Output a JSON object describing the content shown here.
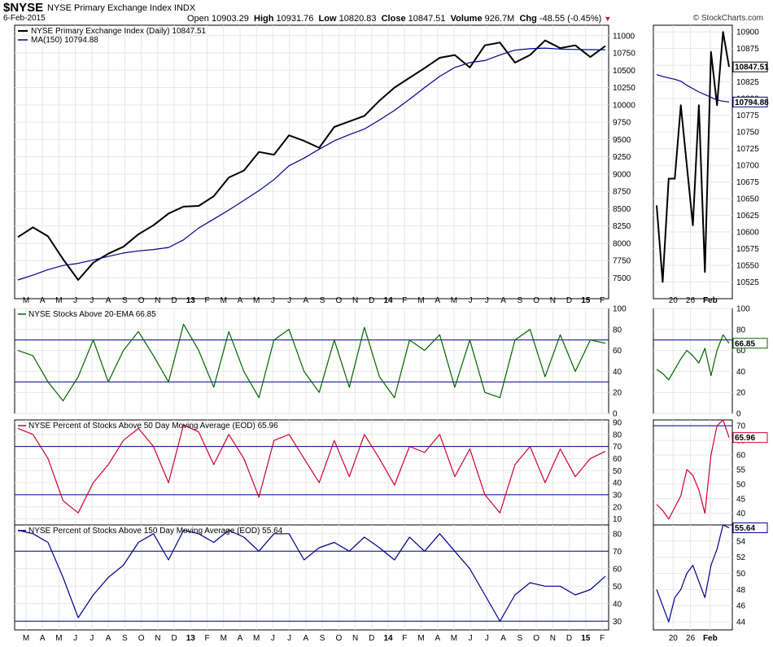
{
  "header": {
    "symbol": "$NYSE",
    "name": "NYSE Primary Exchange Index INDX",
    "date": "6-Feb-2015",
    "open_label": "Open",
    "open": "10903.29",
    "high_label": "High",
    "high": "10931.76",
    "low_label": "Low",
    "low": "10820.83",
    "close_label": "Close",
    "close": "10847.51",
    "volume_label": "Volume",
    "volume": "926.7M",
    "chg_label": "Chg",
    "chg": "-48.55 (-0.45%)",
    "watermark": "© StockCharts.com"
  },
  "colors": {
    "price": "#000000",
    "ma": "#00008b",
    "ema20": "#006400",
    "ma50": "#cc0033",
    "ma150": "#00008b",
    "grid": "#e6e6e6"
  },
  "x_labels": [
    "M",
    "A",
    "M",
    "J",
    "J",
    "A",
    "S",
    "O",
    "N",
    "D",
    "13",
    "F",
    "M",
    "A",
    "M",
    "J",
    "J",
    "A",
    "S",
    "O",
    "N",
    "D",
    "14",
    "F",
    "M",
    "A",
    "M",
    "J",
    "J",
    "A",
    "S",
    "O",
    "N",
    "D",
    "15",
    "F"
  ],
  "zoom_x_labels": [
    "20",
    "26",
    "Feb"
  ],
  "chart_data": [
    {
      "type": "line",
      "panel": "price",
      "series": [
        {
          "name": "NYSE Primary Exchange Index (Daily) 10847.51",
          "values": [
            8090,
            8230,
            8100,
            7770,
            7470,
            7720,
            7850,
            7950,
            8130,
            8260,
            8430,
            8530,
            8540,
            8680,
            8950,
            9050,
            9320,
            9280,
            9560,
            9480,
            9380,
            9680,
            9760,
            9840,
            10060,
            10250,
            10390,
            10530,
            10680,
            10720,
            10540,
            10860,
            10900,
            10610,
            10720,
            10930,
            10820,
            10860,
            10690,
            10850
          ]
        },
        {
          "name": "MA(150) 10794.88",
          "values": [
            7470,
            7540,
            7620,
            7680,
            7710,
            7760,
            7810,
            7860,
            7890,
            7910,
            7940,
            8050,
            8220,
            8350,
            8480,
            8620,
            8760,
            8920,
            9120,
            9230,
            9360,
            9480,
            9570,
            9650,
            9780,
            9920,
            10080,
            10250,
            10410,
            10540,
            10610,
            10640,
            10720,
            10790,
            10810,
            10820,
            10805,
            10800,
            10797,
            10794.88
          ]
        }
      ],
      "ylim": [
        7200,
        11150
      ],
      "y_ticks": [
        7500,
        7750,
        8000,
        8250,
        8500,
        8750,
        9000,
        9250,
        9500,
        9750,
        10000,
        10250,
        10500,
        10750,
        11000
      ]
    },
    {
      "type": "line",
      "panel": "price-zoom",
      "series": [
        {
          "name": "NYSE Primary Exchange Index",
          "values": [
            10640,
            10525,
            10680,
            10680,
            10790,
            10700,
            10610,
            10790,
            10540,
            10870,
            10790,
            10900,
            10847.51
          ]
        },
        {
          "name": "MA(150)",
          "values": [
            10836,
            10833,
            10831,
            10829,
            10826,
            10820,
            10815,
            10810,
            10806,
            10802,
            10798,
            10796,
            10794.88
          ]
        }
      ],
      "ylim": [
        10500,
        10910
      ],
      "y_ticks": [
        10525,
        10550,
        10575,
        10600,
        10625,
        10650,
        10675,
        10700,
        10725,
        10750,
        10775,
        10800,
        10825,
        10850,
        10875,
        10900
      ],
      "last_label": "10847.51",
      "ma_label": "10794.88"
    },
    {
      "type": "line",
      "panel": "ema20",
      "series": [
        {
          "name": "NYSE Stocks Above 20-EMA 66.85",
          "values": [
            60,
            55,
            30,
            12,
            35,
            70,
            30,
            60,
            78,
            55,
            30,
            85,
            60,
            25,
            78,
            40,
            15,
            70,
            80,
            40,
            20,
            70,
            25,
            82,
            35,
            15,
            70,
            60,
            75,
            25,
            70,
            20,
            15,
            70,
            80,
            35,
            75,
            40,
            70,
            66.85
          ]
        }
      ],
      "ylim": [
        0,
        100
      ],
      "y_ticks": [
        0,
        20,
        40,
        60,
        80,
        100
      ],
      "hlines": [
        30,
        70
      ]
    },
    {
      "type": "line",
      "panel": "ema20-zoom",
      "series": [
        {
          "name": "NYSE Stocks Above 20-EMA",
          "values": [
            42,
            38,
            32,
            42,
            52,
            60,
            55,
            48,
            62,
            36,
            60,
            75,
            66.85
          ]
        }
      ],
      "ylim": [
        0,
        100
      ],
      "y_ticks": [
        0,
        20,
        40,
        60,
        80,
        100
      ],
      "hlines": [
        70
      ],
      "last_label": "66.85"
    },
    {
      "type": "line",
      "panel": "ma50",
      "series": [
        {
          "name": "NYSE Percent of Stocks Above 50 Day Moving Average (EOD) 65.96",
          "values": [
            85,
            80,
            60,
            25,
            15,
            40,
            55,
            75,
            85,
            70,
            40,
            88,
            82,
            55,
            80,
            60,
            28,
            75,
            80,
            60,
            40,
            75,
            45,
            80,
            60,
            38,
            70,
            65,
            80,
            45,
            68,
            30,
            15,
            55,
            70,
            40,
            68,
            45,
            60,
            65.96
          ]
        }
      ],
      "ylim": [
        5,
        92
      ],
      "y_ticks": [
        10,
        20,
        30,
        40,
        50,
        60,
        70,
        80,
        90
      ],
      "hlines": [
        30,
        70
      ]
    },
    {
      "type": "line",
      "panel": "ma50-zoom",
      "series": [
        {
          "name": "NYSE Percent of Stocks Above 50 Day Moving Average",
          "values": [
            43,
            41,
            38,
            42,
            46,
            55,
            53,
            48,
            40,
            60,
            70,
            72,
            65.96
          ]
        }
      ],
      "ylim": [
        36,
        72
      ],
      "y_ticks": [
        40,
        45,
        50,
        55,
        60,
        65,
        70
      ],
      "hlines": [
        70
      ],
      "last_label": "65.96"
    },
    {
      "type": "line",
      "panel": "ma150",
      "series": [
        {
          "name": "NYSE Percent of Stocks Above 150 Day Moving Average (EOD) 55.64",
          "values": [
            82,
            80,
            75,
            55,
            32,
            45,
            55,
            62,
            75,
            80,
            65,
            82,
            80,
            75,
            82,
            78,
            70,
            80,
            80,
            65,
            72,
            75,
            70,
            78,
            72,
            65,
            78,
            70,
            80,
            70,
            60,
            45,
            30,
            45,
            52,
            50,
            50,
            45,
            48,
            55.64
          ]
        }
      ],
      "ylim": [
        25,
        85
      ],
      "y_ticks": [
        30,
        40,
        50,
        60,
        70,
        80
      ],
      "hlines": [
        30,
        70
      ]
    },
    {
      "type": "line",
      "panel": "ma150-zoom",
      "series": [
        {
          "name": "NYSE Percent of Stocks Above 150 Day Moving Average",
          "values": [
            48,
            46,
            44,
            47,
            48,
            50,
            51,
            49,
            47,
            51,
            53,
            56,
            55.64
          ]
        }
      ],
      "ylim": [
        43,
        56
      ],
      "y_ticks": [
        44,
        46,
        48,
        50,
        52,
        54
      ],
      "last_label": "55.64"
    }
  ]
}
